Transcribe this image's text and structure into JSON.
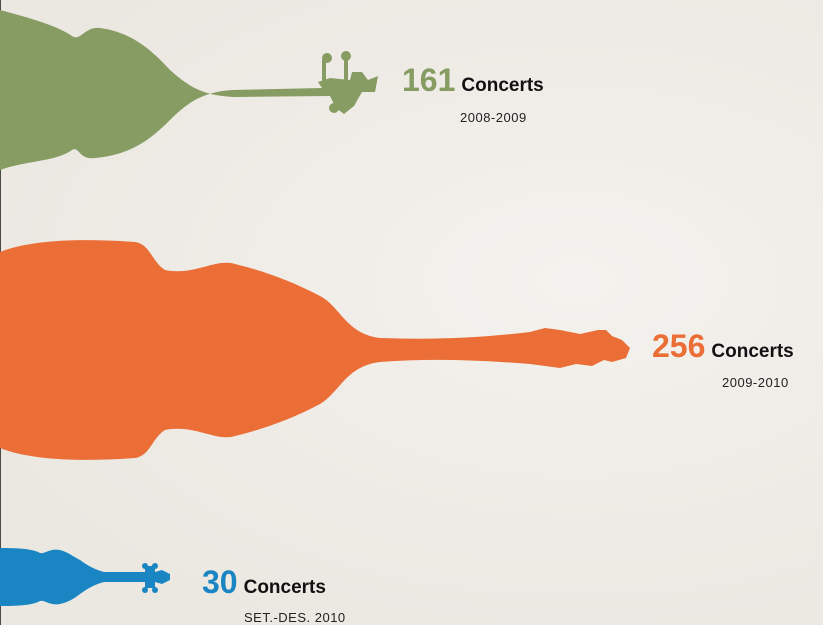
{
  "chart_data": {
    "type": "bar",
    "categories": [
      "2008-2009",
      "2009-2010",
      "SET.-DES. 2010"
    ],
    "values": [
      161,
      256,
      30
    ],
    "unit_label": "Concerts",
    "colors": [
      "#879c63",
      "#eb6e37",
      "#1a85c3"
    ],
    "instrument_icons": [
      "cello-icon",
      "double-bass-icon",
      "violin-icon"
    ]
  }
}
